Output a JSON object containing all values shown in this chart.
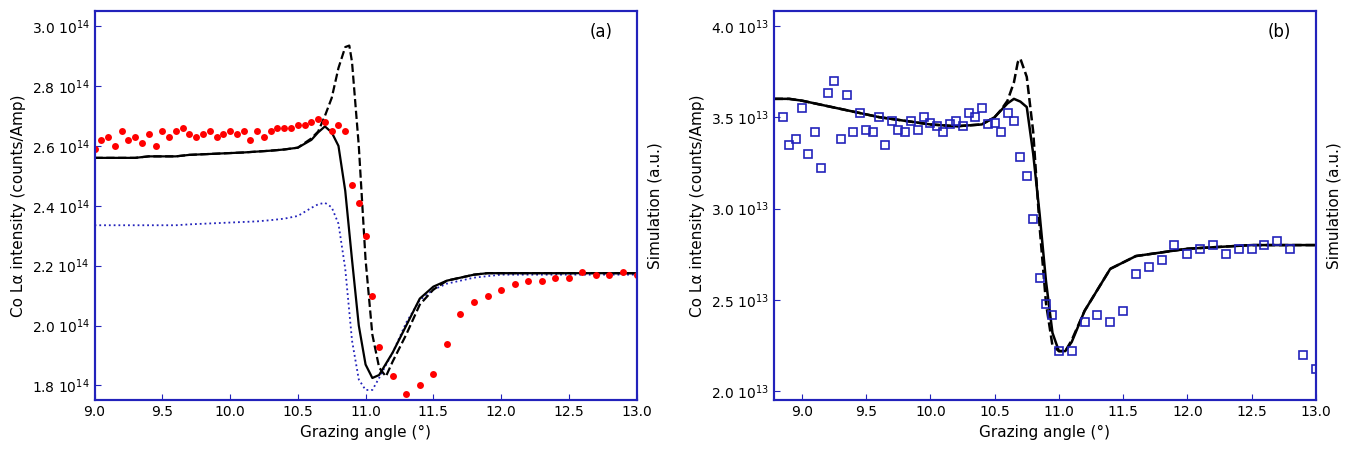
{
  "panel_a": {
    "label": "(a)",
    "xlim": [
      9.0,
      13.0
    ],
    "ylim": [
      175000000000000.0,
      305000000000000.0
    ],
    "yticks": [
      180000000000000.0,
      200000000000000.0,
      220000000000000.0,
      240000000000000.0,
      260000000000000.0,
      280000000000000.0,
      300000000000000.0
    ],
    "xticks": [
      9.0,
      9.5,
      10.0,
      10.5,
      11.0,
      11.5,
      12.0,
      12.5,
      13.0
    ],
    "ylabel": "Co Lα intensity (counts/Amp)",
    "xlabel": "Grazing angle (°)",
    "right_ylabel": "Simulation (a.u.)",
    "data_dots": {
      "color": "red",
      "x": [
        9.0,
        9.05,
        9.1,
        9.15,
        9.2,
        9.25,
        9.3,
        9.35,
        9.4,
        9.45,
        9.5,
        9.55,
        9.6,
        9.65,
        9.7,
        9.75,
        9.8,
        9.85,
        9.9,
        9.95,
        10.0,
        10.05,
        10.1,
        10.15,
        10.2,
        10.25,
        10.3,
        10.35,
        10.4,
        10.45,
        10.5,
        10.55,
        10.6,
        10.65,
        10.7,
        10.75,
        10.8,
        10.85,
        10.9,
        10.95,
        11.0,
        11.05,
        11.1,
        11.2,
        11.3,
        11.4,
        11.5,
        11.6,
        11.7,
        11.8,
        11.9,
        12.0,
        12.1,
        12.2,
        12.3,
        12.4,
        12.5,
        12.6,
        12.7,
        12.8,
        12.9,
        13.0
      ],
      "y": [
        259000000000000.0,
        262000000000000.0,
        263000000000000.0,
        260000000000000.0,
        265000000000000.0,
        262000000000000.0,
        263000000000000.0,
        261000000000000.0,
        264000000000000.0,
        260000000000000.0,
        265000000000000.0,
        263000000000000.0,
        265000000000000.0,
        266000000000000.0,
        264000000000000.0,
        263000000000000.0,
        264000000000000.0,
        265000000000000.0,
        263000000000000.0,
        264000000000000.0,
        265000000000000.0,
        264000000000000.0,
        265000000000000.0,
        262000000000000.0,
        265000000000000.0,
        263000000000000.0,
        265000000000000.0,
        266000000000000.0,
        266000000000000.0,
        266000000000000.0,
        267000000000000.0,
        267000000000000.0,
        268000000000000.0,
        269000000000000.0,
        268000000000000.0,
        265000000000000.0,
        267000000000000.0,
        265000000000000.0,
        247000000000000.0,
        241000000000000.0,
        230000000000000.0,
        210000000000000.0,
        193000000000000.0,
        183000000000000.0,
        177000000000000.0,
        180000000000000.0,
        184000000000000.0,
        194000000000000.0,
        204000000000000.0,
        208000000000000.0,
        210000000000000.0,
        212000000000000.0,
        214000000000000.0,
        215000000000000.0,
        215000000000000.0,
        216000000000000.0,
        216000000000000.0,
        218000000000000.0,
        217000000000000.0,
        217000000000000.0,
        218000000000000.0,
        217000000000000.0
      ]
    },
    "line_solid": {
      "color": "black",
      "x": [
        9.0,
        9.1,
        9.2,
        9.3,
        9.4,
        9.5,
        9.6,
        9.7,
        9.8,
        9.9,
        10.0,
        10.1,
        10.2,
        10.3,
        10.4,
        10.5,
        10.6,
        10.65,
        10.7,
        10.75,
        10.8,
        10.85,
        10.9,
        10.95,
        11.0,
        11.05,
        11.1,
        11.2,
        11.3,
        11.4,
        11.5,
        11.6,
        11.7,
        11.8,
        11.9,
        12.0,
        12.1,
        12.2,
        12.3,
        12.4,
        12.5,
        12.6,
        12.7,
        12.8,
        12.9,
        13.0
      ],
      "y": [
        256000000000000.0,
        256000000000000.0,
        256000000000000.0,
        256000000000000.0,
        256500000000000.0,
        256500000000000.0,
        256500000000000.0,
        257000000000000.0,
        257200000000000.0,
        257400000000000.0,
        257600000000000.0,
        257800000000000.0,
        258100000000000.0,
        258400000000000.0,
        258800000000000.0,
        259400000000000.0,
        262000000000000.0,
        264500000000000.0,
        266500000000000.0,
        264500000000000.0,
        260000000000000.0,
        245000000000000.0,
        222000000000000.0,
        200000000000000.0,
        187000000000000.0,
        182500000000000.0,
        183500000000000.0,
        191000000000000.0,
        200000000000000.0,
        209000000000000.0,
        213000000000000.0,
        215000000000000.0,
        216000000000000.0,
        217000000000000.0,
        217500000000000.0,
        217500000000000.0,
        217500000000000.0,
        217500000000000.0,
        217500000000000.0,
        217500000000000.0,
        217500000000000.0,
        217500000000000.0,
        217500000000000.0,
        217500000000000.0,
        217500000000000.0,
        217500000000000.0
      ]
    },
    "line_dashed": {
      "color": "black",
      "x": [
        9.0,
        9.1,
        9.2,
        9.3,
        9.4,
        9.5,
        9.6,
        9.7,
        9.8,
        9.9,
        10.0,
        10.1,
        10.2,
        10.3,
        10.4,
        10.5,
        10.6,
        10.65,
        10.7,
        10.75,
        10.8,
        10.85,
        10.88,
        10.9,
        10.95,
        11.0,
        11.05,
        11.1,
        11.15,
        11.2,
        11.3,
        11.4,
        11.5,
        11.6,
        11.7,
        11.8,
        11.9,
        12.0,
        12.5,
        13.0
      ],
      "y": [
        256000000000000.0,
        256000000000000.0,
        256000000000000.0,
        256000000000000.0,
        256500000000000.0,
        256500000000000.0,
        256500000000000.0,
        257000000000000.0,
        257200000000000.0,
        257400000000000.0,
        257600000000000.0,
        257800000000000.0,
        258100000000000.0,
        258400000000000.0,
        258800000000000.0,
        259400000000000.0,
        262500000000000.0,
        264800000000000.0,
        270000000000000.0,
        276000000000000.0,
        286000000000000.0,
        293000000000000.0,
        293500000000000.0,
        288000000000000.0,
        260000000000000.0,
        222000000000000.0,
        197000000000000.0,
        186000000000000.0,
        183000000000000.0,
        188000000000000.0,
        197000000000000.0,
        207000000000000.0,
        212000000000000.0,
        215000000000000.0,
        216000000000000.0,
        217000000000000.0,
        217500000000000.0,
        217500000000000.0,
        217500000000000.0,
        217500000000000.0
      ]
    },
    "line_blue_dotted": {
      "color": "#2222bb",
      "x": [
        9.0,
        9.1,
        9.2,
        9.3,
        9.4,
        9.5,
        9.6,
        9.7,
        9.8,
        9.9,
        10.0,
        10.1,
        10.2,
        10.3,
        10.4,
        10.5,
        10.6,
        10.65,
        10.7,
        10.75,
        10.8,
        10.85,
        10.9,
        10.95,
        11.0,
        11.05,
        11.1,
        11.2,
        11.3,
        11.4,
        11.5,
        11.6,
        11.7,
        11.8,
        11.9,
        12.0,
        12.5,
        13.0
      ],
      "y": [
        233500000000000.0,
        233500000000000.0,
        233500000000000.0,
        233500000000000.0,
        233500000000000.0,
        233500000000000.0,
        233500000000000.0,
        233800000000000.0,
        234000000000000.0,
        234200000000000.0,
        234400000000000.0,
        234600000000000.0,
        234800000000000.0,
        235200000000000.0,
        235700000000000.0,
        236600000000000.0,
        239300000000000.0,
        240500000000000.0,
        241000000000000.0,
        239500000000000.0,
        234000000000000.0,
        219000000000000.0,
        195000000000000.0,
        182000000000000.0,
        178500000000000.0,
        178500000000000.0,
        182500000000000.0,
        191000000000000.0,
        201000000000000.0,
        208500000000000.0,
        212000000000000.0,
        214000000000000.0,
        215000000000000.0,
        216000000000000.0,
        216500000000000.0,
        217000000000000.0,
        217000000000000.0,
        217000000000000.0
      ]
    }
  },
  "panel_b": {
    "label": "(b)",
    "xlim": [
      8.78,
      13.0
    ],
    "ylim": [
      19500000000000.0,
      40800000000000.0
    ],
    "yticks": [
      20000000000000.0,
      25000000000000.0,
      30000000000000.0,
      35000000000000.0,
      40000000000000.0
    ],
    "xticks": [
      9.0,
      9.5,
      10.0,
      10.5,
      11.0,
      11.5,
      12.0,
      12.5,
      13.0
    ],
    "ylabel": "Co Lα intensity (counts/Amp)",
    "xlabel": "Grazing angle (°)",
    "right_ylabel": "Simulation (a.u.)",
    "data_squares": {
      "color": "#2222bb",
      "x": [
        8.85,
        8.9,
        8.95,
        9.0,
        9.05,
        9.1,
        9.15,
        9.2,
        9.25,
        9.3,
        9.35,
        9.4,
        9.45,
        9.5,
        9.55,
        9.6,
        9.65,
        9.7,
        9.75,
        9.8,
        9.85,
        9.9,
        9.95,
        10.0,
        10.05,
        10.1,
        10.15,
        10.2,
        10.25,
        10.3,
        10.35,
        10.4,
        10.45,
        10.5,
        10.55,
        10.6,
        10.65,
        10.7,
        10.75,
        10.8,
        10.85,
        10.9,
        10.95,
        11.0,
        11.1,
        11.2,
        11.3,
        11.4,
        11.5,
        11.6,
        11.7,
        11.8,
        11.9,
        12.0,
        12.1,
        12.2,
        12.3,
        12.4,
        12.5,
        12.6,
        12.7,
        12.8,
        12.9,
        13.0
      ],
      "y": [
        35000000000000.0,
        33500000000000.0,
        33800000000000.0,
        35500000000000.0,
        33000000000000.0,
        34200000000000.0,
        32200000000000.0,
        36300000000000.0,
        37000000000000.0,
        33800000000000.0,
        36200000000000.0,
        34200000000000.0,
        35200000000000.0,
        34300000000000.0,
        34200000000000.0,
        35000000000000.0,
        33500000000000.0,
        34800000000000.0,
        34300000000000.0,
        34200000000000.0,
        34800000000000.0,
        34300000000000.0,
        35000000000000.0,
        34700000000000.0,
        34500000000000.0,
        34200000000000.0,
        34600000000000.0,
        34800000000000.0,
        34500000000000.0,
        35200000000000.0,
        35000000000000.0,
        35500000000000.0,
        34600000000000.0,
        34700000000000.0,
        34200000000000.0,
        35200000000000.0,
        34800000000000.0,
        32800000000000.0,
        31800000000000.0,
        29400000000000.0,
        26200000000000.0,
        24800000000000.0,
        24200000000000.0,
        22200000000000.0,
        22200000000000.0,
        23800000000000.0,
        24200000000000.0,
        23800000000000.0,
        24400000000000.0,
        26400000000000.0,
        26800000000000.0,
        27200000000000.0,
        28000000000000.0,
        27500000000000.0,
        27800000000000.0,
        28000000000000.0,
        27500000000000.0,
        27800000000000.0,
        27800000000000.0,
        28000000000000.0,
        28200000000000.0,
        27800000000000.0,
        22000000000000.0,
        21200000000000.0
      ]
    },
    "line_solid": {
      "color": "black",
      "x": [
        8.78,
        8.9,
        9.0,
        9.2,
        9.4,
        9.6,
        9.8,
        10.0,
        10.2,
        10.4,
        10.5,
        10.6,
        10.65,
        10.7,
        10.75,
        10.8,
        10.85,
        10.9,
        10.95,
        11.0,
        11.05,
        11.1,
        11.2,
        11.4,
        11.6,
        11.8,
        12.0,
        12.5,
        13.0
      ],
      "y": [
        36000000000000.0,
        36000000000000.0,
        35900000000000.0,
        35600000000000.0,
        35300000000000.0,
        35000000000000.0,
        34800000000000.0,
        34600000000000.0,
        34500000000000.0,
        34600000000000.0,
        35000000000000.0,
        35750000000000.0,
        36000000000000.0,
        35850000000000.0,
        35550000000000.0,
        33000000000000.0,
        29700000000000.0,
        26000000000000.0,
        23200000000000.0,
        22200000000000.0,
        22200000000000.0,
        22700000000000.0,
        24400000000000.0,
        26700000000000.0,
        27400000000000.0,
        27600000000000.0,
        27800000000000.0,
        28000000000000.0,
        28000000000000.0
      ]
    },
    "line_dashed": {
      "color": "black",
      "x": [
        8.78,
        8.9,
        9.0,
        9.2,
        9.4,
        9.6,
        9.8,
        10.0,
        10.2,
        10.4,
        10.5,
        10.55,
        10.6,
        10.65,
        10.68,
        10.7,
        10.75,
        10.8,
        10.85,
        10.9,
        10.95,
        11.0,
        11.05,
        11.1,
        11.2,
        11.4,
        11.6,
        11.8,
        12.0,
        12.5,
        13.0
      ],
      "y": [
        36000000000000.0,
        36000000000000.0,
        35900000000000.0,
        35600000000000.0,
        35300000000000.0,
        35000000000000.0,
        34800000000000.0,
        34600000000000.0,
        34500000000000.0,
        34600000000000.0,
        35000000000000.0,
        35400000000000.0,
        35900000000000.0,
        36900000000000.0,
        38000000000000.0,
        38200000000000.0,
        37200000000000.0,
        34200000000000.0,
        29000000000000.0,
        24800000000000.0,
        22500000000000.0,
        22200000000000.0,
        22200000000000.0,
        22800000000000.0,
        24400000000000.0,
        26700000000000.0,
        27400000000000.0,
        27600000000000.0,
        27800000000000.0,
        28000000000000.0,
        28000000000000.0
      ]
    }
  },
  "border_color": "#2222bb",
  "bg_color": "white",
  "tick_color": "#2222bb",
  "fontsize": 11
}
